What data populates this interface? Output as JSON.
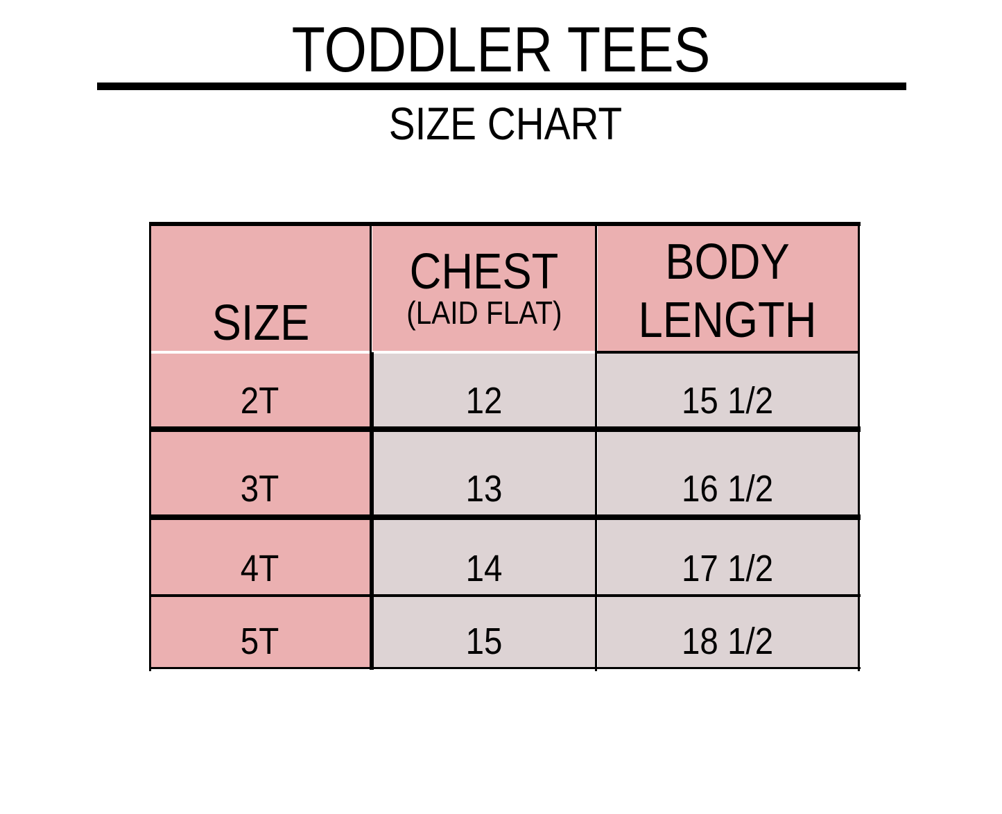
{
  "header": {
    "title": "TODDLER TEES",
    "subtitle": "SIZE CHART"
  },
  "colors": {
    "header_bg": "#ebb0b1",
    "size_col_bg": "#ebb0b1",
    "value_bg": "#ddd3d4",
    "border": "#000000"
  },
  "table": {
    "columns": [
      {
        "label": "SIZE"
      },
      {
        "label": "CHEST",
        "sublabel": "(LAID FLAT)"
      },
      {
        "label_line1": "BODY",
        "label_line2": "LENGTH"
      }
    ],
    "rows": [
      {
        "size": "2T",
        "chest": "12",
        "length": "15 1/2"
      },
      {
        "size": "3T",
        "chest": "13",
        "length": "16 1/2"
      },
      {
        "size": "4T",
        "chest": "14",
        "length": "17 1/2"
      },
      {
        "size": "5T",
        "chest": "15",
        "length": "18 1/2"
      }
    ]
  }
}
